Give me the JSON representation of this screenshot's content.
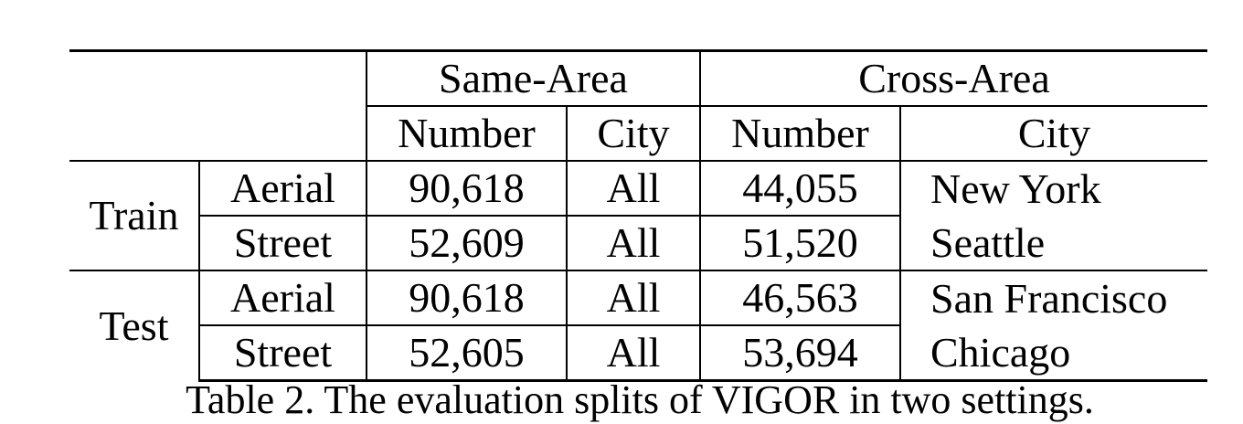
{
  "header": {
    "same_area": "Same-Area",
    "cross_area": "Cross-Area",
    "number": "Number",
    "city": "City"
  },
  "groups": [
    {
      "label": "Train",
      "rows": [
        {
          "type": "Aerial",
          "same_number": "90,618",
          "same_city": "All",
          "cross_number": "44,055",
          "cross_city": "New York"
        },
        {
          "type": "Street",
          "same_number": "52,609",
          "same_city": "All",
          "cross_number": "51,520",
          "cross_city": "Seattle"
        }
      ]
    },
    {
      "label": "Test",
      "rows": [
        {
          "type": "Aerial",
          "same_number": "90,618",
          "same_city": "All",
          "cross_number": "46,563",
          "cross_city": "San Francisco"
        },
        {
          "type": "Street",
          "same_number": "52,605",
          "same_city": "All",
          "cross_number": "53,694",
          "cross_city": "Chicago"
        }
      ]
    }
  ],
  "caption": "Table 2. The evaluation splits of VIGOR in two settings."
}
